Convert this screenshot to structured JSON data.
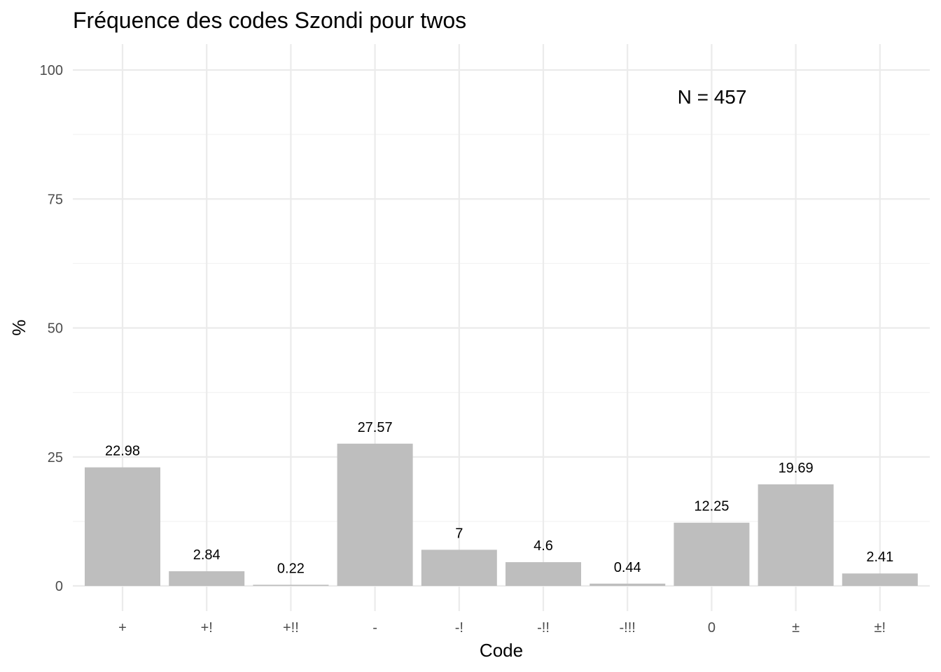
{
  "chart_data": {
    "type": "bar",
    "title": "Fréquence des codes Szondi pour twos",
    "xlabel": "Code",
    "ylabel": "%",
    "categories": [
      "+",
      "+!",
      "+!!",
      "-",
      "-!",
      "-!!",
      "-!!!",
      "0",
      "±",
      "±!"
    ],
    "values": [
      22.98,
      2.84,
      0.22,
      27.57,
      7,
      4.6,
      0.44,
      12.25,
      19.69,
      2.41
    ],
    "data_labels": [
      "22.98",
      "2.84",
      "0.22",
      "27.57",
      "7",
      "4.6",
      "0.44",
      "12.25",
      "19.69",
      "2.41"
    ],
    "ylim": [
      0,
      100
    ],
    "yticks": [
      0,
      25,
      50,
      75,
      100
    ],
    "ytick_labels": [
      "0",
      "25",
      "50",
      "75",
      "100"
    ],
    "grid": true,
    "annotation": "N = 457",
    "colors": {
      "bar": "#bebebe",
      "grid": "#ebebeb",
      "background": "#ffffff"
    }
  }
}
